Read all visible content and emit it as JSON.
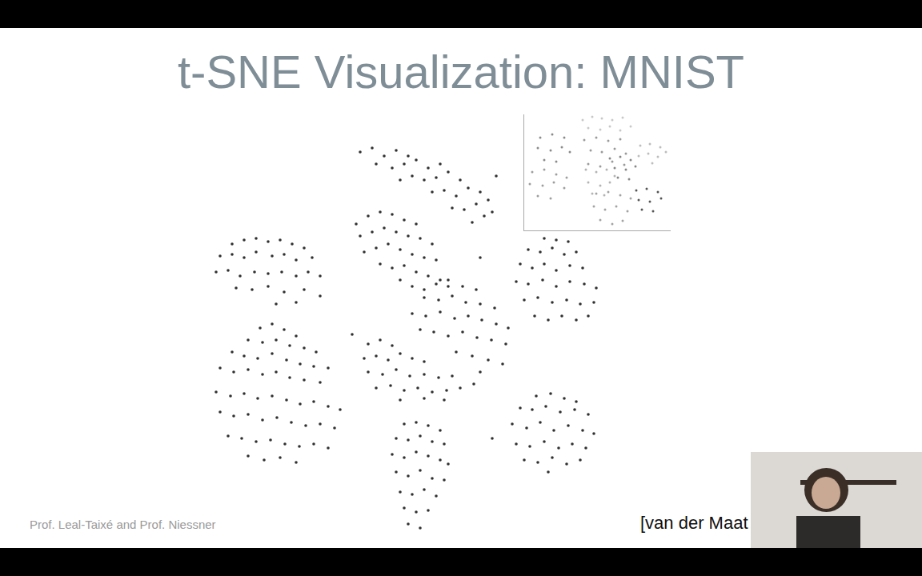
{
  "chart_data": [
    {
      "type": "scatter",
      "title": "t-SNE Visualization: MNIST",
      "annotations": [
        "Prof. Leal-Taixé and Prof. Niessner",
        "[van der Maat"
      ],
      "color": "#1a1a1a",
      "marker": "circle",
      "xlim": [
        260,
        760
      ],
      "ylim": [
        50,
        545
      ],
      "tick_labels": false,
      "grid": false,
      "x": [
        450,
        465,
        480,
        495,
        510,
        470,
        490,
        505,
        520,
        535,
        550,
        515,
        530,
        545,
        560,
        575,
        540,
        555,
        570,
        585,
        600,
        565,
        580,
        595,
        610,
        590,
        605,
        615,
        620,
        500,
        445,
        460,
        475,
        490,
        505,
        520,
        450,
        465,
        480,
        495,
        510,
        525,
        540,
        455,
        470,
        485,
        500,
        515,
        530,
        545,
        475,
        490,
        505,
        520,
        535,
        550,
        500,
        515,
        530,
        560,
        290,
        305,
        320,
        335,
        350,
        365,
        380,
        275,
        290,
        305,
        320,
        340,
        355,
        370,
        390,
        270,
        285,
        300,
        318,
        335,
        352,
        370,
        385,
        400,
        295,
        315,
        335,
        355,
        380,
        400,
        345,
        370,
        680,
        695,
        710,
        660,
        675,
        690,
        705,
        720,
        650,
        665,
        680,
        695,
        712,
        728,
        645,
        660,
        678,
        695,
        712,
        730,
        745,
        655,
        672,
        690,
        708,
        725,
        742,
        668,
        685,
        702,
        720,
        735,
        545,
        560,
        578,
        595,
        530,
        548,
        565,
        582,
        600,
        618,
        515,
        532,
        550,
        568,
        585,
        602,
        620,
        635,
        525,
        542,
        560,
        578,
        596,
        614,
        632,
        570,
        590,
        610,
        628,
        600,
        460,
        475,
        490,
        455,
        470,
        485,
        500,
        515,
        530,
        460,
        478,
        495,
        512,
        530,
        548,
        565,
        470,
        488,
        505,
        522,
        540,
        558,
        575,
        592,
        500,
        530,
        555,
        325,
        340,
        355,
        370,
        310,
        328,
        345,
        362,
        380,
        395,
        290,
        305,
        322,
        340,
        358,
        375,
        392,
        410,
        275,
        292,
        310,
        328,
        345,
        362,
        380,
        400,
        270,
        288,
        305,
        322,
        340,
        358,
        375,
        392,
        410,
        425,
        275,
        292,
        310,
        328,
        346,
        364,
        382,
        400,
        418,
        285,
        302,
        320,
        338,
        356,
        374,
        392,
        410,
        310,
        330,
        350,
        370,
        505,
        520,
        535,
        550,
        495,
        510,
        525,
        540,
        555,
        490,
        505,
        520,
        535,
        550,
        560,
        495,
        510,
        525,
        540,
        555,
        500,
        515,
        530,
        545,
        505,
        520,
        535,
        510,
        525,
        670,
        688,
        705,
        720,
        650,
        665,
        682,
        700,
        718,
        735,
        640,
        658,
        675,
        692,
        710,
        728,
        742,
        645,
        662,
        680,
        698,
        715,
        732,
        655,
        672,
        690,
        708,
        725,
        685,
        440,
        600,
        615
      ],
      "y": [
        530,
        535,
        525,
        532,
        525,
        515,
        510,
        515,
        520,
        510,
        515,
        500,
        495,
        498,
        505,
        495,
        480,
        482,
        475,
        485,
        480,
        460,
        458,
        465,
        470,
        442,
        450,
        455,
        500,
        495,
        440,
        450,
        455,
        452,
        445,
        440,
        425,
        430,
        435,
        430,
        425,
        422,
        415,
        405,
        410,
        415,
        408,
        402,
        398,
        395,
        390,
        385,
        388,
        380,
        375,
        370,
        370,
        362,
        358,
        362,
        415,
        420,
        422,
        418,
        420,
        415,
        410,
        400,
        402,
        398,
        405,
        400,
        402,
        395,
        398,
        380,
        382,
        375,
        380,
        378,
        380,
        375,
        380,
        375,
        360,
        358,
        362,
        355,
        358,
        350,
        340,
        342,
        422,
        420,
        418,
        408,
        405,
        410,
        402,
        405,
        390,
        385,
        390,
        382,
        388,
        385,
        368,
        365,
        370,
        362,
        368,
        365,
        360,
        345,
        348,
        342,
        345,
        340,
        342,
        325,
        320,
        325,
        320,
        325,
        365,
        370,
        362,
        358,
        348,
        345,
        350,
        342,
        340,
        335,
        328,
        325,
        330,
        322,
        325,
        320,
        315,
        310,
        308,
        305,
        300,
        305,
        298,
        295,
        290,
        280,
        275,
        270,
        265,
        255,
        290,
        295,
        288,
        272,
        275,
        270,
        278,
        272,
        268,
        255,
        252,
        258,
        250,
        252,
        248,
        250,
        235,
        238,
        232,
        235,
        230,
        232,
        235,
        240,
        220,
        222,
        220,
        310,
        315,
        308,
        300,
        295,
        292,
        295,
        288,
        285,
        280,
        280,
        275,
        272,
        278,
        270,
        265,
        262,
        260,
        260,
        255,
        258,
        252,
        255,
        248,
        245,
        242,
        230,
        225,
        228,
        222,
        225,
        220,
        215,
        218,
        212,
        208,
        205,
        200,
        202,
        195,
        198,
        192,
        188,
        190,
        185,
        175,
        172,
        168,
        170,
        165,
        162,
        165,
        160,
        150,
        145,
        148,
        142,
        190,
        192,
        188,
        182,
        172,
        170,
        175,
        168,
        165,
        152,
        148,
        155,
        150,
        145,
        140,
        130,
        125,
        132,
        122,
        120,
        105,
        102,
        108,
        100,
        85,
        80,
        82,
        65,
        60,
        225,
        228,
        222,
        218,
        210,
        208,
        212,
        205,
        208,
        202,
        190,
        185,
        192,
        182,
        188,
        182,
        178,
        165,
        162,
        168,
        160,
        165,
        160,
        145,
        142,
        148,
        140,
        145,
        130,
        302,
        398,
        172
      ]
    },
    {
      "type": "scatter",
      "marker": "circle",
      "xlim": [
        655,
        838
      ],
      "ylim": [
        432,
        577
      ],
      "tick_labels": false,
      "grid": false,
      "series": [
        {
          "color": "#c8c8c8",
          "x": [
            728,
            740,
            752,
            765,
            778,
            735,
            750,
            762,
            775,
            788
          ],
          "y": [
            570,
            574,
            572,
            570,
            573,
            560,
            558,
            562,
            557,
            562
          ]
        },
        {
          "color": "#9a9a9a",
          "x": [
            730,
            745,
            760,
            775,
            738,
            752,
            768,
            782,
            735,
            750,
            765,
            780
          ],
          "y": [
            545,
            548,
            544,
            546,
            532,
            530,
            534,
            528,
            515,
            512,
            518,
            514
          ]
        },
        {
          "color": "#bdbdbd",
          "x": [
            800,
            812,
            825,
            798,
            810,
            822,
            832,
            815
          ],
          "y": [
            538,
            540,
            536,
            525,
            528,
            524,
            530,
            516
          ]
        },
        {
          "color": "#8a8a8a",
          "x": [
            675,
            690,
            705,
            672,
            688,
            702,
            712,
            680,
            695
          ],
          "y": [
            548,
            552,
            548,
            535,
            532,
            536,
            530,
            520,
            518
          ]
        },
        {
          "color": "#9e9e9e",
          "x": [
            665,
            680,
            695,
            708,
            662,
            678,
            692,
            705,
            672,
            688
          ],
          "y": [
            505,
            508,
            502,
            498,
            490,
            488,
            492,
            485,
            475,
            472
          ]
        },
        {
          "color": "#b3b3b3",
          "x": [
            732,
            745,
            758,
            768,
            735,
            750,
            762,
            740,
            755
          ],
          "y": [
            508,
            505,
            508,
            500,
            492,
            488,
            492,
            478,
            476
          ]
        },
        {
          "color": "#878787",
          "x": [
            762,
            775,
            788,
            768,
            782,
            794,
            772,
            786
          ],
          "y": [
            522,
            524,
            520,
            510,
            508,
            512,
            498,
            496
          ]
        },
        {
          "color": "#a3a3a3",
          "x": [
            745,
            760,
            775,
            788,
            742,
            756,
            770,
            784,
            750,
            765,
            778
          ],
          "y": [
            478,
            480,
            476,
            472,
            462,
            458,
            462,
            456,
            445,
            440,
            444
          ]
        },
        {
          "color": "#555555",
          "x": [
            795,
            808,
            822,
            798,
            812,
            826,
            802,
            816
          ],
          "y": [
            482,
            484,
            480,
            470,
            468,
            472,
            458,
            456
          ]
        }
      ]
    }
  ]
}
